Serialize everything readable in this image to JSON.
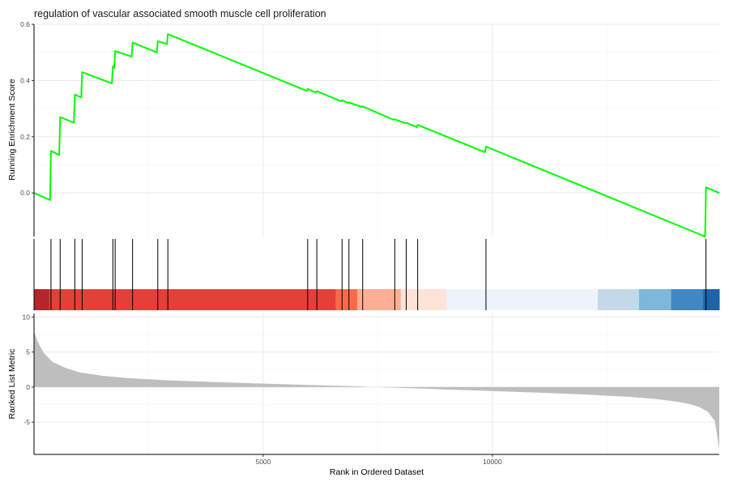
{
  "chart_data": {
    "type": "line",
    "title": "regulation of vascular associated smooth muscle cell proliferation",
    "xlabel": "Rank in Ordered Dataset",
    "xlim": [
      0,
      14950
    ],
    "x_ticks": [
      "5000",
      "10000"
    ],
    "x_tick_values": [
      5000,
      10000
    ],
    "grid": true,
    "panels": [
      {
        "name": "running-enrichment",
        "ylabel": "Running Enrichment Score",
        "ylim": [
          -0.155,
          0.6
        ],
        "y_ticks": [
          "0.0",
          "0.2",
          "0.4",
          "0.6"
        ],
        "y_tick_values": [
          0.0,
          0.2,
          0.4,
          0.6
        ],
        "line_color": "#00ff00",
        "series": [
          {
            "x": [
              0,
              350,
              370,
              550,
              570,
              870,
              890,
              1030,
              1050,
              1700,
              1720,
              1750,
              1770,
              2130,
              2150,
              2680,
              2700,
              2900,
              2920,
              5950,
              5970,
              6150,
              6170,
              6700,
              6720,
              6850,
              6870,
              7150,
              7170,
              7850,
              7870,
              8100,
              8120,
              8350,
              8370,
              9840,
              9860,
              14640,
              14660,
              14950
            ],
            "y": [
              0.0,
              -0.025,
              0.15,
              0.135,
              0.27,
              0.25,
              0.35,
              0.34,
              0.43,
              0.39,
              0.45,
              0.445,
              0.505,
              0.485,
              0.535,
              0.5,
              0.54,
              0.53,
              0.565,
              0.363,
              0.37,
              0.357,
              0.362,
              0.326,
              0.33,
              0.32,
              0.322,
              0.306,
              0.308,
              0.26,
              0.262,
              0.248,
              0.25,
              0.234,
              0.242,
              0.145,
              0.165,
              -0.155,
              0.02,
              0.0
            ]
          }
        ]
      },
      {
        "name": "hit-ticks",
        "hits": [
          0,
          370,
          570,
          890,
          1050,
          1720,
          1770,
          2150,
          2700,
          2920,
          5970,
          6170,
          6720,
          6870,
          7170,
          7870,
          8120,
          8370,
          9860,
          14660
        ],
        "color_bands": [
          {
            "from": 0,
            "to": 330,
            "color": "#b2262c"
          },
          {
            "from": 330,
            "to": 6580,
            "color": "#e3403a"
          },
          {
            "from": 6580,
            "to": 7050,
            "color": "#fb6b4b"
          },
          {
            "from": 7050,
            "to": 8000,
            "color": "#fcaf94"
          },
          {
            "from": 8000,
            "to": 9000,
            "color": "#fee3d8"
          },
          {
            "from": 9000,
            "to": 12300,
            "color": "#eef3fb"
          },
          {
            "from": 12300,
            "to": 13200,
            "color": "#c1d9e8"
          },
          {
            "from": 13200,
            "to": 13900,
            "color": "#7db7da"
          },
          {
            "from": 13900,
            "to": 14600,
            "color": "#4188c2"
          },
          {
            "from": 14600,
            "to": 14950,
            "color": "#1c63a8"
          }
        ]
      },
      {
        "name": "ranked-metric",
        "ylabel": "Ranked List Metric",
        "ylim": [
          -9.6,
          10.5
        ],
        "y_ticks": [
          "-5",
          "0",
          "5",
          "10"
        ],
        "y_tick_values": [
          -5,
          0,
          5,
          10
        ],
        "fill_color": "#bebebe",
        "series": [
          {
            "x": [
              0,
              80,
              200,
              400,
              700,
              1000,
              1500,
              2000,
              3000,
              4000,
              5000,
              6000,
              7000,
              7400,
              8000,
              9000,
              10000,
              11000,
              12000,
              13000,
              13500,
              14000,
              14300,
              14500,
              14700,
              14850,
              14950
            ],
            "y": [
              8.0,
              6.5,
              5.0,
              3.6,
              2.7,
              2.1,
              1.6,
              1.3,
              0.95,
              0.7,
              0.5,
              0.3,
              0.12,
              0.0,
              -0.1,
              -0.35,
              -0.55,
              -0.8,
              -1.05,
              -1.4,
              -1.65,
              -2.05,
              -2.4,
              -2.8,
              -3.5,
              -4.8,
              -8.8
            ]
          }
        ]
      }
    ]
  }
}
